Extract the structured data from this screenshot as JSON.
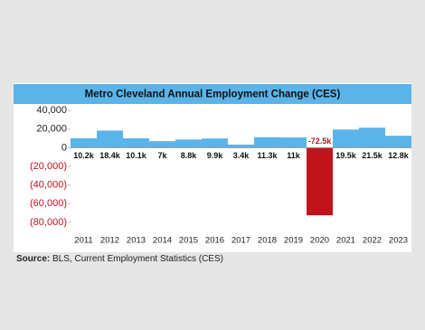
{
  "chart_data": {
    "type": "bar",
    "title": "Metro Cleveland Annual Employment Change (CES)",
    "categories": [
      "2011",
      "2012",
      "2013",
      "2014",
      "2015",
      "2016",
      "2017",
      "2018",
      "2019",
      "2020",
      "2021",
      "2022",
      "2023"
    ],
    "values": [
      10200,
      18400,
      10100,
      7000,
      8800,
      9900,
      3400,
      11300,
      11000,
      -72500,
      19500,
      21500,
      12800
    ],
    "value_labels": [
      "10.2k",
      "18.4k",
      "10.1k",
      "7k",
      "8.8k",
      "9.9k",
      "3.4k",
      "11.3k",
      "11k",
      "-72.5k",
      "19.5k",
      "21.5k",
      "12.8k"
    ],
    "color": "#5bb4e8",
    "negative_color": "#c0141c",
    "ylim": [
      -85000,
      45000
    ],
    "yticks": [
      {
        "value": 40000,
        "label": "40,000"
      },
      {
        "value": 20000,
        "label": "20,000"
      },
      0,
      {
        "value": -20000,
        "label": "(20,000)"
      },
      {
        "value": -40000,
        "label": "(40,000)"
      },
      {
        "value": -60000,
        "label": "(60,000)"
      },
      {
        "value": -80000,
        "label": "(80,000)"
      }
    ],
    "grid": false,
    "source_label": "Source:",
    "source": "BLS, Current Employment Statistics (CES)"
  }
}
